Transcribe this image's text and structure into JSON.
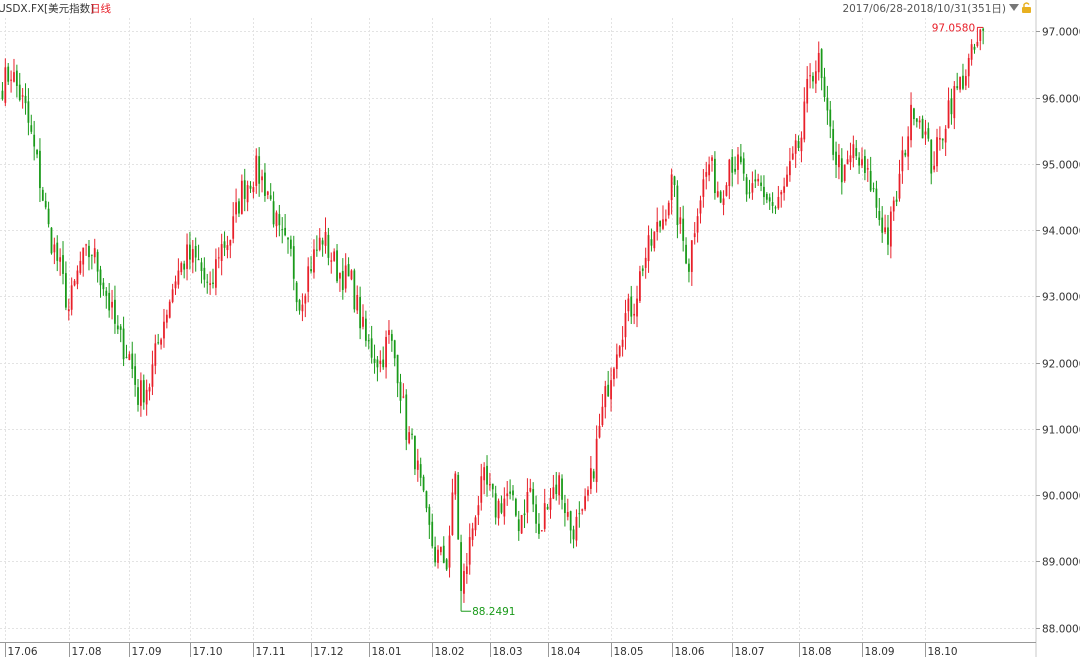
{
  "header": {
    "symbol": "USDX.FX",
    "name": "[美元指数]",
    "period": "日线",
    "range": "2017/06/28-2018/10/31(351日)"
  },
  "colors": {
    "up": "#e8202a",
    "down": "#1a9a1a",
    "grid": "#e3e3e3",
    "axis": "#888888",
    "text": "#333333"
  },
  "chart_data": {
    "type": "candlestick",
    "instrument": "USDX.FX",
    "timeframe": "日线",
    "ylim": [
      87.8,
      97.2
    ],
    "y_ticks": [
      97.0,
      96.0,
      95.0,
      94.0,
      93.0,
      92.0,
      91.0,
      90.0,
      89.0,
      88.0
    ],
    "y_tick_labels": [
      "97.0000",
      "96.0000",
      "95.0000",
      "94.0000",
      "93.0000",
      "92.0000",
      "91.0000",
      "90.0000",
      "89.0000",
      "88.0000"
    ],
    "x_tick_labels": [
      "17.06",
      "17.08",
      "17.09",
      "17.10",
      "17.11",
      "17.12",
      "18.01",
      "18.02",
      "18.03",
      "18.04",
      "18.05",
      "18.06",
      "18.07",
      "18.08",
      "18.09",
      "18.10"
    ],
    "x_tick_bar_index": [
      1,
      23,
      44,
      65,
      87,
      107,
      127,
      149,
      169,
      189,
      211,
      232,
      253,
      276,
      298,
      320
    ],
    "bar_count": 351,
    "annotations": {
      "high_label": "97.0580",
      "high_value": 97.058,
      "low_label": "88.2491",
      "low_value": 88.2491
    },
    "close_anchors": [
      {
        "i": 0,
        "v": 96.2
      },
      {
        "i": 3,
        "v": 96.4
      },
      {
        "i": 8,
        "v": 95.8
      },
      {
        "i": 12,
        "v": 95.0
      },
      {
        "i": 16,
        "v": 94.0
      },
      {
        "i": 20,
        "v": 93.4
      },
      {
        "i": 23,
        "v": 92.8
      },
      {
        "i": 27,
        "v": 93.5
      },
      {
        "i": 31,
        "v": 93.7
      },
      {
        "i": 35,
        "v": 93.2
      },
      {
        "i": 40,
        "v": 92.4
      },
      {
        "i": 44,
        "v": 92.1
      },
      {
        "i": 47,
        "v": 91.5
      },
      {
        "i": 51,
        "v": 91.7
      },
      {
        "i": 55,
        "v": 92.5
      },
      {
        "i": 60,
        "v": 93.3
      },
      {
        "i": 64,
        "v": 93.6
      },
      {
        "i": 68,
        "v": 93.5
      },
      {
        "i": 72,
        "v": 93.0
      },
      {
        "i": 75,
        "v": 93.7
      },
      {
        "i": 79,
        "v": 93.9
      },
      {
        "i": 83,
        "v": 94.6
      },
      {
        "i": 88,
        "v": 94.9
      },
      {
        "i": 92,
        "v": 94.6
      },
      {
        "i": 96,
        "v": 93.9
      },
      {
        "i": 100,
        "v": 93.6
      },
      {
        "i": 103,
        "v": 92.9
      },
      {
        "i": 106,
        "v": 93.4
      },
      {
        "i": 111,
        "v": 93.9
      },
      {
        "i": 116,
        "v": 93.4
      },
      {
        "i": 121,
        "v": 93.2
      },
      {
        "i": 126,
        "v": 92.3
      },
      {
        "i": 131,
        "v": 92.0
      },
      {
        "i": 134,
        "v": 92.4
      },
      {
        "i": 137,
        "v": 91.9
      },
      {
        "i": 140,
        "v": 91.0
      },
      {
        "i": 143,
        "v": 90.6
      },
      {
        "i": 147,
        "v": 89.6
      },
      {
        "i": 150,
        "v": 89.1
      },
      {
        "i": 154,
        "v": 89.0
      },
      {
        "i": 157,
        "v": 90.3
      },
      {
        "i": 159,
        "v": 88.5
      },
      {
        "i": 161,
        "v": 89.0
      },
      {
        "i": 164,
        "v": 89.8
      },
      {
        "i": 167,
        "v": 90.2
      },
      {
        "i": 171,
        "v": 89.8
      },
      {
        "i": 175,
        "v": 90.0
      },
      {
        "i": 179,
        "v": 89.6
      },
      {
        "i": 183,
        "v": 90.1
      },
      {
        "i": 186,
        "v": 89.3
      },
      {
        "i": 189,
        "v": 90.0
      },
      {
        "i": 193,
        "v": 90.2
      },
      {
        "i": 197,
        "v": 89.5
      },
      {
        "i": 201,
        "v": 89.6
      },
      {
        "i": 204,
        "v": 90.2
      },
      {
        "i": 207,
        "v": 91.0
      },
      {
        "i": 210,
        "v": 91.7
      },
      {
        "i": 213,
        "v": 92.3
      },
      {
        "i": 216,
        "v": 92.7
      },
      {
        "i": 219,
        "v": 92.9
      },
      {
        "i": 222,
        "v": 93.5
      },
      {
        "i": 225,
        "v": 93.8
      },
      {
        "i": 229,
        "v": 94.2
      },
      {
        "i": 232,
        "v": 94.7
      },
      {
        "i": 235,
        "v": 94.0
      },
      {
        "i": 238,
        "v": 93.5
      },
      {
        "i": 241,
        "v": 94.4
      },
      {
        "i": 245,
        "v": 95.0
      },
      {
        "i": 249,
        "v": 94.5
      },
      {
        "i": 252,
        "v": 95.1
      },
      {
        "i": 256,
        "v": 94.9
      },
      {
        "i": 259,
        "v": 94.4
      },
      {
        "i": 262,
        "v": 94.7
      },
      {
        "i": 265,
        "v": 94.5
      },
      {
        "i": 268,
        "v": 94.3
      },
      {
        "i": 271,
        "v": 94.6
      },
      {
        "i": 274,
        "v": 95.0
      },
      {
        "i": 277,
        "v": 95.4
      },
      {
        "i": 280,
        "v": 96.4
      },
      {
        "i": 283,
        "v": 96.5
      },
      {
        "i": 286,
        "v": 95.6
      },
      {
        "i": 289,
        "v": 95.1
      },
      {
        "i": 292,
        "v": 94.8
      },
      {
        "i": 295,
        "v": 95.2
      },
      {
        "i": 298,
        "v": 94.9
      },
      {
        "i": 301,
        "v": 94.7
      },
      {
        "i": 304,
        "v": 94.2
      },
      {
        "i": 307,
        "v": 93.9
      },
      {
        "i": 310,
        "v": 94.5
      },
      {
        "i": 313,
        "v": 95.3
      },
      {
        "i": 316,
        "v": 95.9
      },
      {
        "i": 319,
        "v": 95.6
      },
      {
        "i": 322,
        "v": 95.0
      },
      {
        "i": 325,
        "v": 95.3
      },
      {
        "i": 328,
        "v": 95.9
      },
      {
        "i": 331,
        "v": 96.1
      },
      {
        "i": 334,
        "v": 96.4
      },
      {
        "i": 337,
        "v": 96.7
      },
      {
        "i": 340,
        "v": 97.0
      }
    ]
  }
}
